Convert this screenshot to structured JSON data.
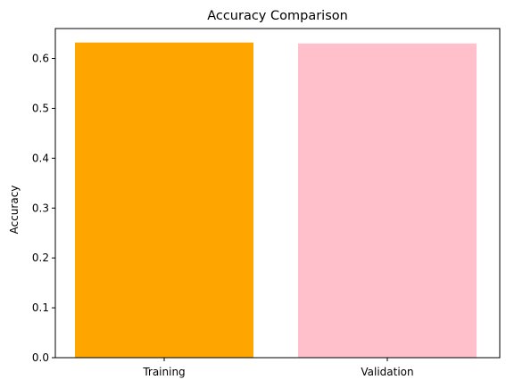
{
  "chart_data": {
    "type": "bar",
    "title": "Accuracy Comparison",
    "xlabel": "",
    "ylabel": "Accuracy",
    "categories": [
      "Training",
      "Validation"
    ],
    "values": [
      0.632,
      0.63
    ],
    "colors": [
      "#ffa500",
      "#ffc0cb"
    ],
    "ylim": [
      0,
      0.66
    ],
    "yticks": [
      0.0,
      0.1,
      0.2,
      0.3,
      0.4,
      0.5,
      0.6
    ],
    "ytick_labels": [
      "0.0",
      "0.1",
      "0.2",
      "0.3",
      "0.4",
      "0.5",
      "0.6"
    ],
    "grid": false,
    "legend": "none"
  }
}
